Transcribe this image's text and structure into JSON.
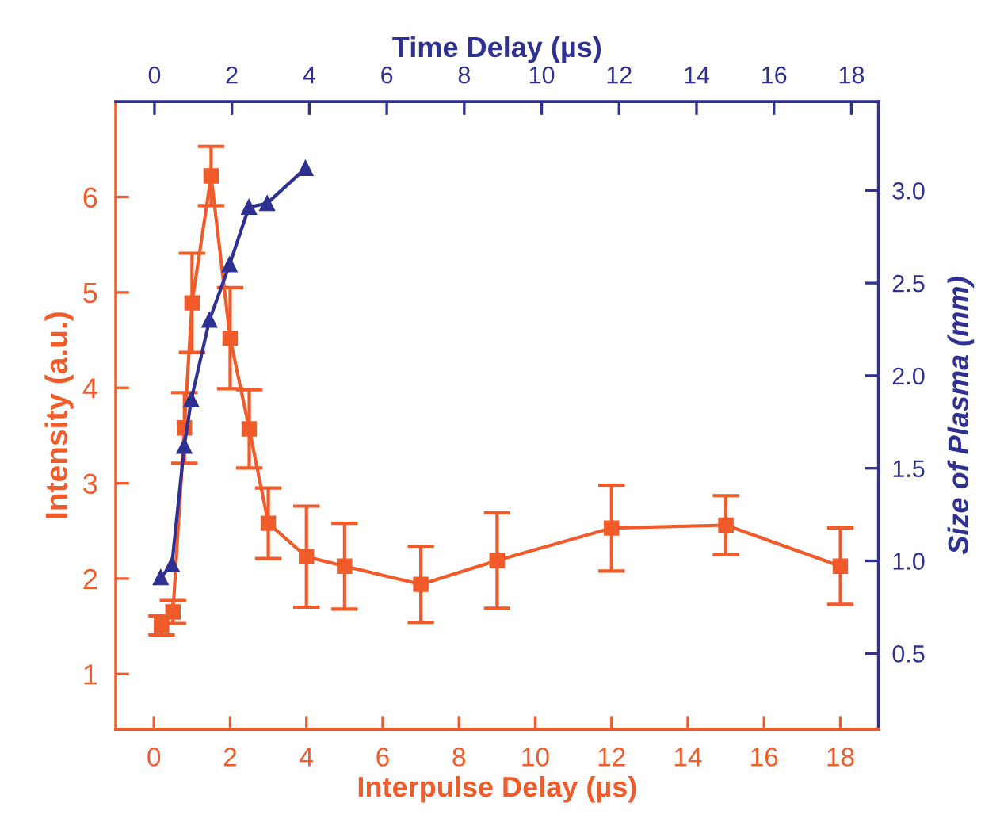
{
  "chart_data": {
    "type": "line",
    "xlabel": "Interpulse Delay (µs)",
    "ylabel": "Intensity (a.u.)",
    "x2label": "Time Delay (µs)",
    "y2label": "Size of Plasma (mm)",
    "xlim": [
      -1,
      19
    ],
    "xticks": [
      0,
      2,
      4,
      6,
      8,
      10,
      12,
      14,
      16,
      18
    ],
    "ylim": [
      0.42,
      7.0
    ],
    "yticks": [
      1,
      2,
      3,
      4,
      5,
      6
    ],
    "x2lim": [
      -1,
      18.7
    ],
    "x2ticks": [
      0,
      2,
      4,
      6,
      8,
      10,
      12,
      14,
      16,
      18
    ],
    "y2lim": [
      0.09,
      3.48
    ],
    "y2ticks": [
      {
        "value": 0.5,
        "label": "0.5"
      },
      {
        "value": 1,
        "label": "1.0"
      },
      {
        "value": 1.5,
        "label": "1.5"
      },
      {
        "value": 2,
        "label": "2.0"
      },
      {
        "value": 2.5,
        "label": "2.5"
      },
      {
        "value": 3,
        "label": "3.0"
      }
    ],
    "grid": false,
    "legend": false,
    "series": [
      {
        "color": "#f15a29",
        "marker": "square",
        "x": [
          0.2,
          0.5,
          0.8,
          1.0,
          1.5,
          2.0,
          2.5,
          3.0,
          4.0,
          5.0,
          7.0,
          9.0,
          12.0,
          15.0,
          18.0
        ],
        "values": [
          1.51,
          1.65,
          3.58,
          4.89,
          6.22,
          4.52,
          3.57,
          2.58,
          2.23,
          2.13,
          1.94,
          2.19,
          2.53,
          2.56,
          2.13
        ],
        "errors": [
          0.1,
          0.12,
          0.37,
          0.52,
          0.31,
          0.53,
          0.41,
          0.37,
          0.53,
          0.45,
          0.4,
          0.5,
          0.45,
          0.31,
          0.4
        ]
      },
      {
        "color": "#2e3192",
        "marker": "triangle",
        "axis": "y2",
        "x": [
          0.16,
          0.45,
          0.77,
          0.95,
          1.42,
          1.94,
          2.44,
          2.91,
          3.9
        ],
        "values": [
          0.91,
          0.98,
          1.62,
          1.87,
          2.3,
          2.6,
          2.91,
          2.93,
          3.12
        ]
      }
    ]
  }
}
